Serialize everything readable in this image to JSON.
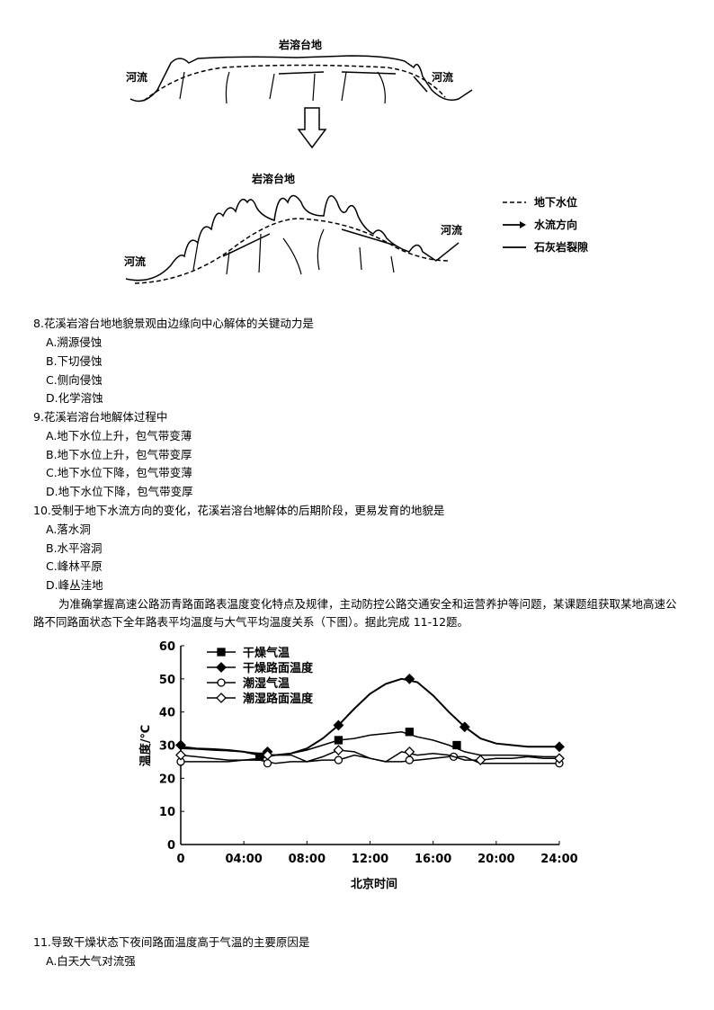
{
  "diagram_top": {
    "title": "岩溶台地",
    "river_left": "河流",
    "river_right": "河流"
  },
  "diagram_bottom": {
    "title": "岩溶台地",
    "river_left": "河流",
    "river_right": "河流"
  },
  "legend": {
    "items": [
      "地下水位",
      "水流方向",
      "石灰岩裂隙"
    ]
  },
  "questions": [
    {
      "stem": "8.花溪岩溶台地地貌景观由边缘向中心解体的关键动力是",
      "options": [
        "A.溯源侵蚀",
        "B.下切侵蚀",
        "C.侧向侵蚀",
        "D.化学溶蚀"
      ]
    },
    {
      "stem": "9.花溪岩溶台地解体过程中",
      "options": [
        "A.地下水位上升，包气带变薄",
        "B.地下水位上升，包气带变厚",
        "C.地下水位下降，包气带变薄",
        "D.地下水位下降，包气带变厚"
      ]
    },
    {
      "stem": "10.受制于地下水流方向的变化，花溪岩溶台地解体的后期阶段，更易发育的地貌是",
      "options": [
        "A.落水洞",
        "B.水平溶洞",
        "C.峰林平原",
        "D.峰丛洼地"
      ]
    }
  ],
  "passage": "为准确掌握高速公路沥青路面路表温度变化特点及规律，主动防控公路交通安全和运营养护等问题，某课题组获取某地高速公路不同路面状态下全年路表平均温度与大气平均温度关系（下图）。据此完成 11-12题。",
  "question11": {
    "stem": "11.导致干燥状态下夜间路面温度高于气温的主要原因是",
    "options": [
      "A.白天大气对流强"
    ]
  },
  "chart_data": {
    "type": "line",
    "title": "",
    "xlabel": "北京时间",
    "ylabel": "温度/℃",
    "xlim": [
      0,
      24
    ],
    "ylim": [
      0,
      60
    ],
    "xticks": [
      0,
      4,
      8,
      12,
      16,
      20,
      24
    ],
    "xtick_labels": [
      "0",
      "04:00",
      "08:00",
      "12:00",
      "16:00",
      "20:00",
      "24:00"
    ],
    "yticks": [
      0,
      10,
      20,
      30,
      40,
      50,
      60
    ],
    "ytick_labels": [
      "0",
      "10",
      "20",
      "30",
      "40",
      "50",
      "60"
    ],
    "legend_position": "top-left",
    "x": [
      0,
      1,
      2,
      3,
      4,
      5,
      6,
      7,
      8,
      9,
      10,
      11,
      12,
      13,
      14,
      15,
      16,
      17,
      18,
      19,
      20,
      21,
      22,
      23,
      24
    ],
    "series": [
      {
        "name": "干燥气温",
        "marker": "square-filled",
        "values": [
          29,
          28.8,
          28.5,
          28.3,
          28,
          27.5,
          27,
          27.5,
          28.5,
          30,
          31.5,
          32,
          33,
          33.5,
          34,
          32.5,
          31.5,
          30,
          28,
          27,
          27,
          27,
          26.8,
          26.5,
          26.5
        ],
        "marker_points": [
          [
            5,
            26.5
          ],
          [
            10,
            31.5
          ],
          [
            14.5,
            34
          ],
          [
            17.5,
            30
          ]
        ]
      },
      {
        "name": "干燥路面温度",
        "marker": "diamond-filled",
        "values": [
          29.5,
          29,
          28.8,
          28.5,
          28,
          27,
          27,
          27.5,
          29,
          32,
          36,
          41,
          45.5,
          48.5,
          50,
          49,
          45,
          40,
          35.5,
          32,
          30.5,
          30,
          29.5,
          29.5,
          29.5
        ],
        "marker_points": [
          [
            0,
            30
          ],
          [
            5.5,
            28
          ],
          [
            10,
            36
          ],
          [
            14.5,
            50
          ],
          [
            18,
            35.5
          ],
          [
            24,
            29.5
          ]
        ]
      },
      {
        "name": "潮湿气温",
        "marker": "circle-open",
        "values": [
          25,
          25,
          25,
          25,
          25.5,
          25.5,
          24.5,
          25,
          25,
          25.5,
          25.5,
          27,
          26,
          25,
          25,
          25.5,
          26,
          26.5,
          26.5,
          24.5,
          24.5,
          24.5,
          24.5,
          24.5,
          24.5
        ],
        "marker_points": [
          [
            0,
            25
          ],
          [
            5.5,
            24.5
          ],
          [
            10,
            25.5
          ],
          [
            14.5,
            25.5
          ],
          [
            17.3,
            26.5
          ],
          [
            24,
            24.5
          ]
        ]
      },
      {
        "name": "潮湿路面温度",
        "marker": "diamond-open",
        "values": [
          27,
          26.5,
          26,
          25.5,
          25.5,
          26,
          27,
          27,
          25,
          26.5,
          28.5,
          28,
          26,
          25,
          28,
          27,
          27.5,
          27,
          25.5,
          25.5,
          26,
          26,
          26.5,
          26,
          26
        ],
        "marker_points": [
          [
            0,
            27
          ],
          [
            5.5,
            27
          ],
          [
            10,
            28.5
          ],
          [
            14.5,
            28
          ],
          [
            19,
            25.5
          ],
          [
            24,
            26
          ]
        ]
      }
    ]
  }
}
